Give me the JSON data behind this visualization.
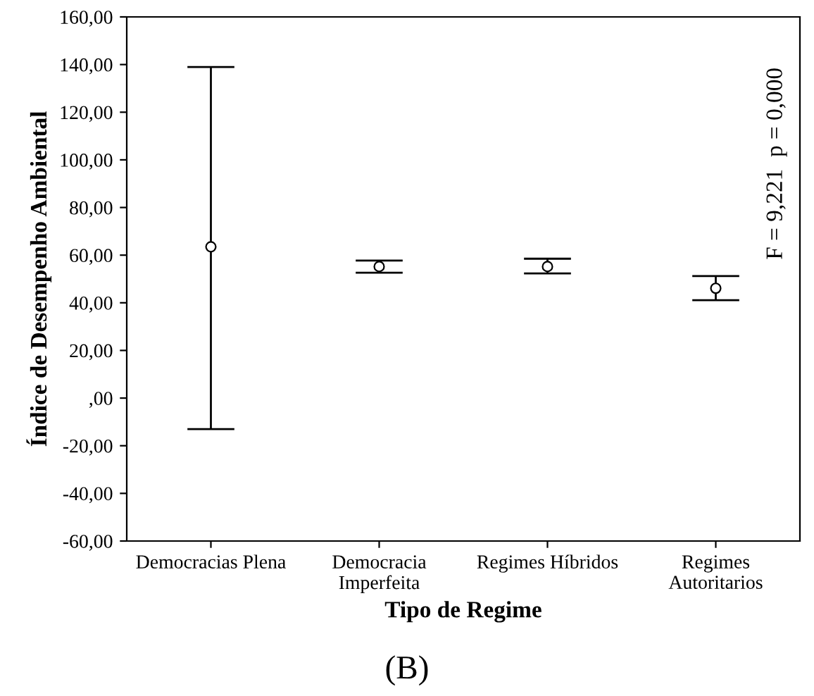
{
  "chart_data": {
    "type": "scatter",
    "xlabel": "Tipo de Regime",
    "ylabel": "Índice de Desempenho Ambiental",
    "categories": [
      "Democracias Plena",
      "Democracia\nImperfeita",
      "Regimes Híbridos",
      "Regimes\nAutoritarios"
    ],
    "values": [
      63.5,
      55.2,
      55.2,
      46.1
    ],
    "errors": [
      [
        -13,
        139
      ],
      [
        52.6,
        57.7
      ],
      [
        52.3,
        58.5
      ],
      [
        41.1,
        51.2
      ]
    ],
    "color": "#000000",
    "marker": "circle",
    "grid": false,
    "ylim": [
      -60,
      160
    ],
    "yticks": [
      {
        "value": -60,
        "label": "-60,00"
      },
      {
        "value": -40,
        "label": "-40,00"
      },
      {
        "value": -20,
        "label": "-20,00"
      },
      {
        "value": 0,
        "label": ",00"
      },
      {
        "value": 20,
        "label": "20,00"
      },
      {
        "value": 40,
        "label": "40,00"
      },
      {
        "value": 60,
        "label": "60,00"
      },
      {
        "value": 80,
        "label": "80,00"
      },
      {
        "value": 100,
        "label": "100,00"
      },
      {
        "value": 120,
        "label": "120,00"
      },
      {
        "value": 140,
        "label": "140,00"
      },
      {
        "value": 160,
        "label": "160,00"
      }
    ],
    "annotations": [
      "F = 9,221  p = 0,000",
      "(B)"
    ]
  }
}
